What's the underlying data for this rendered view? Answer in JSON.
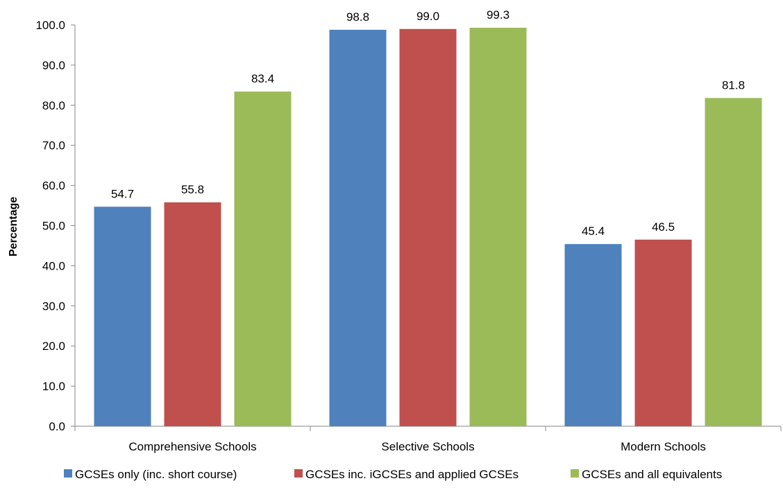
{
  "chart_data": {
    "type": "bar",
    "title": "",
    "xlabel": "",
    "ylabel": "Percentage",
    "ylim": [
      0,
      100
    ],
    "yticks": [
      "0.0",
      "10.0",
      "20.0",
      "30.0",
      "40.0",
      "50.0",
      "60.0",
      "70.0",
      "80.0",
      "90.0",
      "100.0"
    ],
    "grid": false,
    "legend_position": "bottom",
    "categories": [
      "Comprehensive Schools",
      "Selective Schools",
      "Modern Schools"
    ],
    "series": [
      {
        "name": "GCSEs only (inc. short course)",
        "color": "#4F81BD",
        "values": [
          54.7,
          98.8,
          45.4
        ],
        "labels": [
          "54.7",
          "98.8",
          "45.4"
        ]
      },
      {
        "name": "GCSEs inc. iGCSEs and applied GCSEs",
        "color": "#C0504D",
        "values": [
          55.8,
          99.0,
          46.5
        ],
        "labels": [
          "55.8",
          "99.0",
          "46.5"
        ]
      },
      {
        "name": "GCSEs and all equivalents",
        "color": "#9BBB59",
        "values": [
          83.4,
          99.3,
          81.8
        ],
        "labels": [
          "83.4",
          "99.3",
          "81.8"
        ]
      }
    ]
  }
}
